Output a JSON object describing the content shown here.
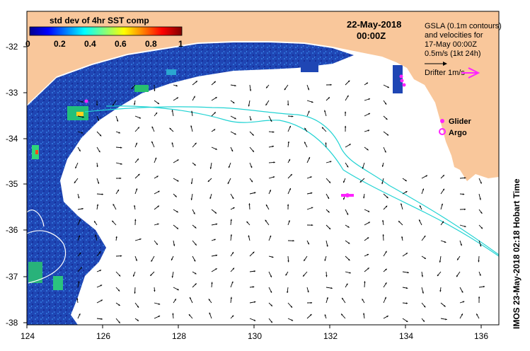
{
  "colorbar": {
    "title": "std dev of 4hr SST comp",
    "ticks": [
      "0",
      "0.2",
      "0.4",
      "0.6",
      "0.8",
      "1"
    ]
  },
  "date": {
    "day": "22-May-2018",
    "time": "00:00Z"
  },
  "legend": {
    "lines": [
      "GSLA (0.1m contours)",
      "and velocities for",
      "17-May 00:00Z",
      "0.5m/s (1kt 24h)"
    ],
    "drifter": "Drifter 1m/s",
    "glider": "Glider",
    "argo": "Argo"
  },
  "credit": "IMOS 23-May-2018 02:18 Hobart Time",
  "axes": {
    "x_ticks": [
      "124",
      "126",
      "128",
      "130",
      "132",
      "134",
      "136"
    ],
    "y_ticks": [
      "-32",
      "-33",
      "-34",
      "-35",
      "-36",
      "-37",
      "-38"
    ]
  },
  "colors": {
    "land": "#f9c79b",
    "ocean_blue": "#1f3fae",
    "contour": "#22d3d3",
    "marker": "#ff22ff"
  }
}
